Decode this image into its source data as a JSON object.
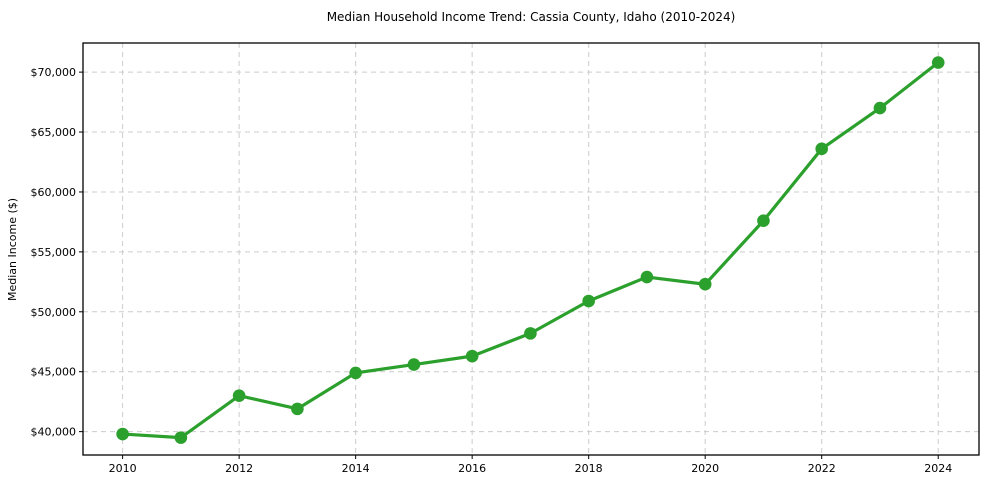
{
  "figure": {
    "background": "#ffffff",
    "title": "Median Household Income Trend: Cassia County, Idaho (2010-2024)",
    "ylabel": "Median Income ($)",
    "xlabel": ""
  },
  "chart_data": {
    "type": "line",
    "title": "Median Household Income Trend: Cassia County, Idaho (2010-2024)",
    "xlabel": "",
    "ylabel": "Median Income ($)",
    "x": [
      2010,
      2011,
      2012,
      2013,
      2014,
      2015,
      2016,
      2017,
      2018,
      2019,
      2020,
      2021,
      2022,
      2023,
      2024
    ],
    "values": [
      39800,
      39500,
      43000,
      41900,
      44900,
      45600,
      46300,
      48200,
      50900,
      52900,
      52300,
      57600,
      63600,
      67000,
      70800
    ],
    "series_name": "Median Household Income",
    "x_ticks": [
      2010,
      2012,
      2014,
      2016,
      2018,
      2020,
      2022,
      2024
    ],
    "x_tick_labels": [
      "2010",
      "2012",
      "2014",
      "2016",
      "2018",
      "2020",
      "2022",
      "2024"
    ],
    "y_ticks": [
      40000,
      45000,
      50000,
      55000,
      60000,
      65000,
      70000
    ],
    "y_tick_labels": [
      "$40,000",
      "$45,000",
      "$50,000",
      "$55,000",
      "$60,000",
      "$65,000",
      "$70,000"
    ],
    "xlim": [
      2009.32,
      2024.7
    ],
    "ylim": [
      38050,
      72430
    ],
    "grid": true,
    "legend": null,
    "colors": {
      "line": "#2ca02c",
      "marker": "#2ca02c",
      "grid": "#cccccc",
      "axis": "#000000",
      "text": "#000000",
      "plot_background": "#ffffff"
    }
  }
}
